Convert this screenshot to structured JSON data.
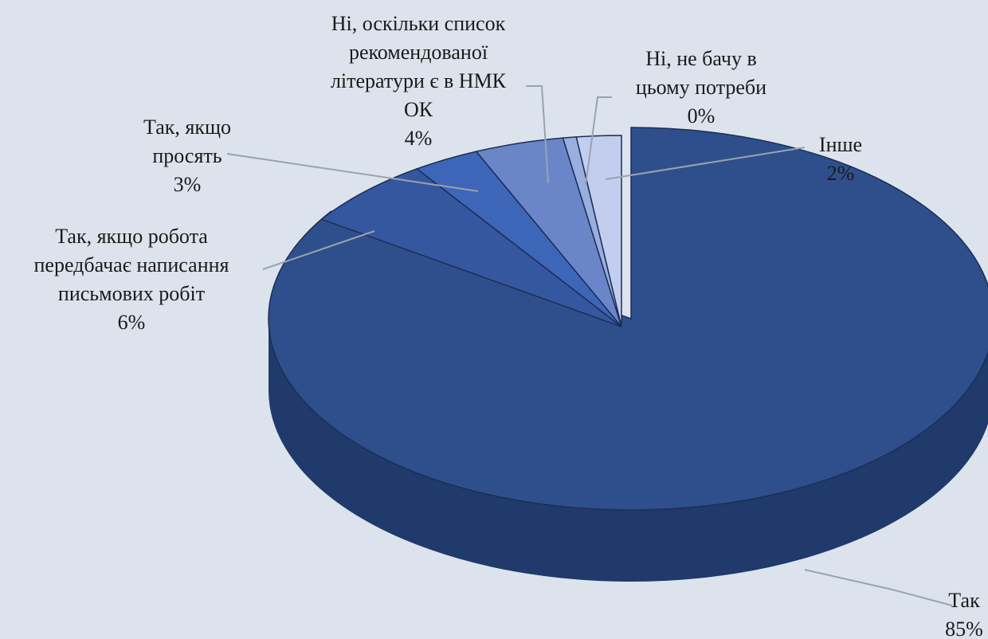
{
  "chart_data": {
    "type": "pie",
    "style": "3d-exploded",
    "slices": [
      {
        "name": "Так",
        "value": 85,
        "label": "85%",
        "color": "#2e4f8c"
      },
      {
        "name": "Так, якщо робота передбачає написання письмових робіт",
        "value": 6,
        "label": "6%",
        "color": "#3557a0"
      },
      {
        "name": "Так, якщо просять",
        "value": 3,
        "label": "3%",
        "color": "#3d66b8"
      },
      {
        "name": "Ні, оскільки список рекомендованої літератури є в НМК ОК",
        "value": 4,
        "label": "4%",
        "color": "#6a86c8"
      },
      {
        "name": "Ні, не бачу в цьому потреби",
        "value": 0,
        "label": "0%",
        "color": "#9aaee0"
      },
      {
        "name": "Інше",
        "value": 2,
        "label": "2%",
        "color": "#c3cdee"
      }
    ],
    "label_lines": [
      [
        "Так",
        "85%"
      ],
      [
        "Так, якщо робота",
        "передбачає написання",
        "письмових робіт",
        "6%"
      ],
      [
        "Так, якщо",
        "просять",
        "3%"
      ],
      [
        "Ні, оскільки список",
        "рекомендованої",
        "літератури  є в НМК",
        "ОК",
        "4%"
      ],
      [
        "Ні, не бачу в",
        "цьому потреби",
        "0%"
      ],
      [
        "Інше",
        "2%"
      ]
    ]
  }
}
